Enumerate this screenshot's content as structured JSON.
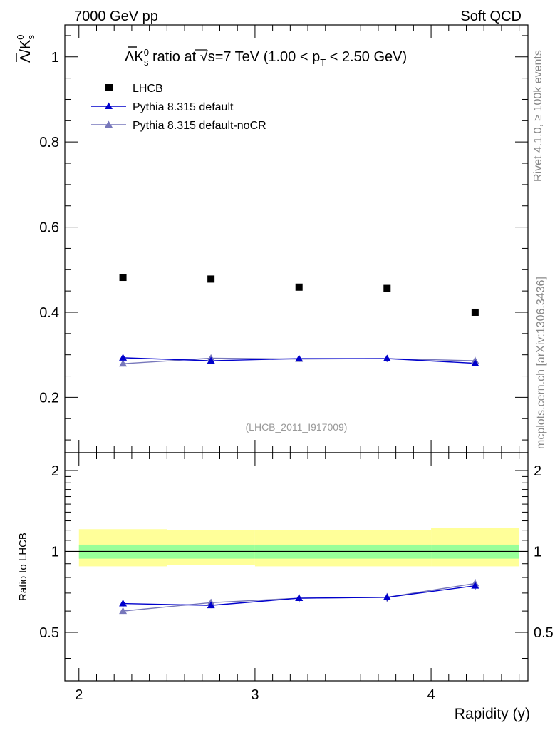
{
  "header": {
    "energy_label": "7000 GeV pp",
    "category_label": "Soft QCD"
  },
  "side_labels": {
    "rivet": "Rivet 4.1.0, ≥ 100k events",
    "mcplots": "mcplots.cern.ch [arXiv:1306.3436]"
  },
  "watermark": "(LHCB_2011_I917009)",
  "colors": {
    "data": "#000000",
    "pythia_default": "#0000cc",
    "pythia_nocr": "#7777bb",
    "band_inner": "#99ff99",
    "band_outer": "#ffff99"
  },
  "chart_data": [
    {
      "type": "scatter",
      "panel": "main",
      "title": "Λ̅/Kˢ⁰ ratio at √s=7 TeV (1.00 < p_T < 2.50 GeV)",
      "title_parts": {
        "ratio_name": "Λ",
        "k": "K",
        "k_sup": "0",
        "k_sub": "s",
        "middle": " ratio at ",
        "sqrt": "√",
        "s_eq": "s=7 TeV (1.00 < p",
        "pt_sub": "T",
        "tail": " < 2.50 GeV)"
      },
      "ylabel_parts": {
        "lambda": "Λ",
        "slash_k": "/K",
        "sup": "0",
        "sub": "s"
      },
      "xlim": [
        1.92,
        4.55
      ],
      "ylim": [
        0.07,
        1.075
      ],
      "yticks": [
        0.2,
        0.4,
        0.6,
        0.8,
        1.0
      ],
      "ytick_labels": [
        "0.2",
        "0.4",
        "0.6",
        "0.8",
        "1"
      ],
      "legend_position": "top-left",
      "series": [
        {
          "name": "LHCB",
          "marker": "square",
          "x": [
            2.25,
            2.75,
            3.25,
            3.75,
            4.25
          ],
          "y": [
            0.482,
            0.478,
            0.459,
            0.456,
            0.4
          ],
          "yerr": [
            0.005,
            0.005,
            0.005,
            0.005,
            0.005
          ]
        },
        {
          "name": "Pythia 8.315 default",
          "marker": "triangle",
          "x": [
            2.25,
            2.75,
            3.25,
            3.75,
            4.25
          ],
          "y": [
            0.293,
            0.286,
            0.291,
            0.291,
            0.28
          ],
          "yerr": [
            0.007,
            0.006,
            0.006,
            0.007,
            0.007
          ]
        },
        {
          "name": "Pythia 8.315 default-noCR",
          "marker": "triangle",
          "x": [
            2.25,
            2.75,
            3.25,
            3.75,
            4.25
          ],
          "y": [
            0.279,
            0.292,
            0.29,
            0.291,
            0.286
          ],
          "yerr": [
            0.007,
            0.008,
            0.007,
            0.008,
            0.009
          ]
        }
      ]
    },
    {
      "type": "line",
      "panel": "ratio",
      "ylabel": "Ratio to LHCB",
      "xlabel": "Rapidity (y)",
      "xlim": [
        1.92,
        4.55
      ],
      "ylim": [
        0.33,
        2.33
      ],
      "xticks": [
        2,
        3,
        4
      ],
      "xtick_labels": [
        "2",
        "3",
        "4"
      ],
      "yticks": [
        0.5,
        1,
        2
      ],
      "ytick_labels": [
        "0.5",
        "1",
        "2"
      ],
      "bands": {
        "bin_edges": [
          2.0,
          2.5,
          3.0,
          3.5,
          4.0,
          4.5
        ],
        "inner_lo": [
          0.94,
          0.94,
          0.94,
          0.94,
          0.94
        ],
        "inner_hi": [
          1.06,
          1.06,
          1.06,
          1.06,
          1.06
        ],
        "outer_lo": [
          0.88,
          0.89,
          0.88,
          0.88,
          0.88
        ],
        "outer_hi": [
          1.21,
          1.2,
          1.2,
          1.2,
          1.22
        ]
      },
      "series": [
        {
          "name": "Pythia 8.315 default",
          "x": [
            2.25,
            2.75,
            3.25,
            3.75,
            4.25
          ],
          "y": [
            0.64,
            0.63,
            0.67,
            0.675,
            0.745
          ],
          "yerr": [
            0.02,
            0.015,
            0.02,
            0.02,
            0.025
          ]
        },
        {
          "name": "Pythia 8.315 default-noCR",
          "x": [
            2.25,
            2.75,
            3.25,
            3.75,
            4.25
          ],
          "y": [
            0.6,
            0.645,
            0.67,
            0.675,
            0.76
          ],
          "yerr": [
            0.015,
            0.02,
            0.025,
            0.025,
            0.03
          ]
        }
      ]
    }
  ]
}
